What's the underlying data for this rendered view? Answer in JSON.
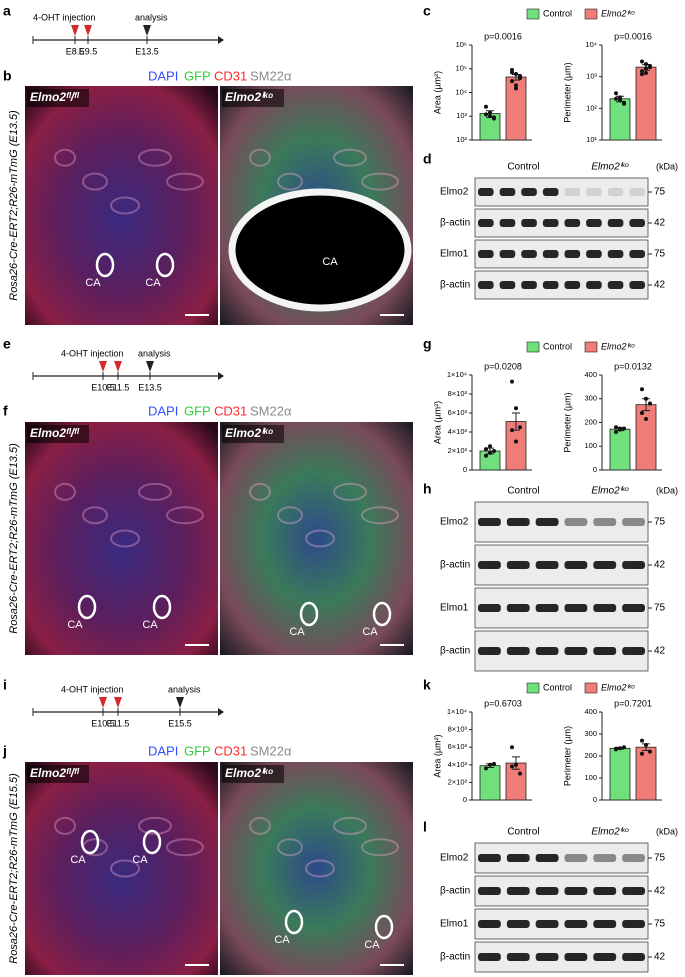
{
  "letters": [
    "a",
    "b",
    "c",
    "d",
    "e",
    "f",
    "g",
    "h",
    "i",
    "j",
    "k",
    "l"
  ],
  "timelines": [
    {
      "injection": "4-OHT injection",
      "analysis": "analysis",
      "stages": [
        "E8.5",
        "E9.5",
        "E13.5"
      ]
    },
    {
      "injection": "4-OHT injection",
      "analysis": "analysis",
      "stages": [
        "E10.5",
        "E11.5",
        "E13.5"
      ]
    },
    {
      "injection": "4-OHT injection",
      "analysis": "analysis",
      "stages": [
        "E10.5",
        "E11.5",
        "E15.5"
      ]
    }
  ],
  "images": [
    {
      "stains": [
        "DAPI",
        "GFP",
        "CD31",
        "SM22α"
      ],
      "side_label": "Rosa26-Cre-ERT2;R26-mTmG (E13.5)",
      "left_genotype": "Elmo2ᶠˡ/ᶠˡ",
      "right_genotype": "Elmo2ⁱᵏᵒ",
      "ca_labels": [
        "CA",
        "CA",
        "CA"
      ]
    },
    {
      "stains": [
        "DAPI",
        "GFP",
        "CD31",
        "SM22α"
      ],
      "side_label": "Rosa26-Cre-ERT2;R26-mTmG (E13.5)",
      "left_genotype": "Elmo2ᶠˡ/ᶠˡ",
      "right_genotype": "Elmo2ⁱᵏᵒ",
      "ca_labels": [
        "CA",
        "CA",
        "CA",
        "CA"
      ]
    },
    {
      "stains": [
        "DAPI",
        "GFP",
        "CD31",
        "SM22α"
      ],
      "side_label": "Rosa26-Cre-ERT2;R26-mTmG (E15.5)",
      "left_genotype": "Elmo2ᶠˡ/ᶠˡ",
      "right_genotype": "Elmo2ⁱᵏᵒ",
      "ca_labels": [
        "CA",
        "CA",
        "CA",
        "CA"
      ]
    }
  ],
  "blots": [
    {
      "groups": [
        "Control",
        "Elmo2ⁱᵏᵒ"
      ],
      "unit": "(kDa)",
      "rows": [
        {
          "protein": "Elmo2",
          "size": "75"
        },
        {
          "protein": "β-actin",
          "size": "42"
        },
        {
          "protein": "Elmo1",
          "size": "75"
        },
        {
          "protein": "β-actin",
          "size": "42"
        }
      ]
    },
    {
      "groups": [
        "Control",
        "Elmo2ⁱᵏᵒ"
      ],
      "unit": "(kDa)",
      "rows": [
        {
          "protein": "Elmo2",
          "size": "75"
        },
        {
          "protein": "β-actin",
          "size": "42"
        },
        {
          "protein": "Elmo1",
          "size": "75"
        },
        {
          "protein": "β-actin",
          "size": "42"
        }
      ]
    },
    {
      "groups": [
        "Control",
        "Elmo2ⁱᵏᵒ"
      ],
      "unit": "(kDa)",
      "rows": [
        {
          "protein": "Elmo2",
          "size": "75"
        },
        {
          "protein": "β-actin",
          "size": "42"
        },
        {
          "protein": "Elmo1",
          "size": "75"
        },
        {
          "protein": "β-actin",
          "size": "42"
        }
      ]
    }
  ],
  "chart_data": [
    {
      "type": "bar",
      "ylabel": "Area (µm²)",
      "annotation": "p=0.0016",
      "log": true,
      "ylim": [
        100,
        1000000
      ],
      "yticks": [
        {
          "value": 100,
          "label": "10²"
        },
        {
          "value": 1000,
          "label": "10³"
        },
        {
          "value": 10000,
          "label": "10⁴"
        },
        {
          "value": 100000,
          "label": "10⁵"
        },
        {
          "value": 1000000,
          "label": "10⁶"
        }
      ],
      "series": [
        {
          "name": "Control",
          "color": "#6fe07b",
          "values": [
            1300
          ],
          "errors": [
            400
          ],
          "points": [
            2500,
            1000,
            900,
            1200,
            1400,
            800
          ]
        },
        {
          "name": "Elmo2ⁱᵏᵒ",
          "color": "#f07c78",
          "values": [
            45000
          ],
          "errors": [
            12000
          ],
          "points": [
            90000,
            60000,
            40000,
            30000,
            20000,
            50000,
            70000,
            15000
          ]
        }
      ]
    },
    {
      "type": "bar",
      "ylabel": "Perimeter (µm)",
      "annotation": "p=0.0016",
      "log": true,
      "ylim": [
        10,
        10000
      ],
      "yticks": [
        {
          "value": 10,
          "label": "10¹"
        },
        {
          "value": 100,
          "label": "10²"
        },
        {
          "value": 1000,
          "label": "10³"
        },
        {
          "value": 10000,
          "label": "10⁴"
        }
      ],
      "series": [
        {
          "color": "#6fe07b",
          "values": [
            200
          ],
          "errors": [
            40
          ],
          "points": [
            300,
            180,
            150,
            200,
            220,
            140
          ]
        },
        {
          "color": "#f07c78",
          "values": [
            2000
          ],
          "errors": [
            400
          ],
          "points": [
            3000,
            2500,
            2000,
            1500,
            1800,
            2200,
            1200,
            1300
          ]
        }
      ]
    },
    {
      "type": "bar",
      "ylabel": "Area (µm²)",
      "annotation": "p=0.0208",
      "log": false,
      "ylim": [
        0,
        10000
      ],
      "yticks": [
        0,
        {
          "value": 2000,
          "label": "2×10³"
        },
        {
          "value": 4000,
          "label": "4×10³"
        },
        {
          "value": 6000,
          "label": "6×10³"
        },
        {
          "value": 8000,
          "label": "8×10³"
        },
        {
          "value": 10000,
          "label": "1×10⁴"
        }
      ],
      "series": [
        {
          "name": "Control",
          "color": "#6fe07b",
          "values": [
            2000
          ],
          "errors": [
            300
          ],
          "points": [
            1500,
            1800,
            2000,
            2200,
            2500
          ]
        },
        {
          "name": "Elmo2ⁱᵏᵒ",
          "color": "#f07c78",
          "values": [
            5100
          ],
          "errors": [
            900
          ],
          "points": [
            9300,
            6500,
            4500,
            4200,
            3000
          ]
        }
      ]
    },
    {
      "type": "bar",
      "ylabel": "Perimeter (µm)",
      "annotation": "p=0.0132",
      "log": false,
      "ylim": [
        0,
        400
      ],
      "yticks": [
        0,
        100,
        200,
        300,
        400
      ],
      "series": [
        {
          "color": "#6fe07b",
          "values": [
            172
          ],
          "errors": [
            6
          ],
          "points": [
            160,
            170,
            175,
            180,
            175
          ]
        },
        {
          "color": "#f07c78",
          "values": [
            275
          ],
          "errors": [
            25
          ],
          "points": [
            340,
            300,
            280,
            240,
            215
          ]
        }
      ]
    },
    {
      "type": "bar",
      "ylabel": "Area (µm²)",
      "annotation": "p=0.6703",
      "log": false,
      "ylim": [
        0,
        10000
      ],
      "yticks": [
        0,
        {
          "value": 2000,
          "label": "2×10³"
        },
        {
          "value": 4000,
          "label": "4×10³"
        },
        {
          "value": 6000,
          "label": "6×10³"
        },
        {
          "value": 8000,
          "label": "8×10³"
        },
        {
          "value": 10000,
          "label": "1×10⁴"
        }
      ],
      "series": [
        {
          "name": "Control",
          "color": "#6fe07b",
          "values": [
            3900
          ],
          "errors": [
            200
          ],
          "points": [
            3600,
            4000,
            4100
          ]
        },
        {
          "name": "Elmo2ⁱᵏᵒ",
          "color": "#f07c78",
          "values": [
            4200
          ],
          "errors": [
            700
          ],
          "points": [
            6000,
            4000,
            3000,
            3800
          ]
        }
      ]
    },
    {
      "type": "bar",
      "ylabel": "Perimeter (µm)",
      "annotation": "p=0.7201",
      "log": false,
      "ylim": [
        0,
        400
      ],
      "yticks": [
        0,
        100,
        200,
        300,
        400
      ],
      "series": [
        {
          "color": "#6fe07b",
          "values": [
            235
          ],
          "errors": [
            4
          ],
          "points": [
            230,
            235,
            240,
            233
          ]
        },
        {
          "color": "#f07c78",
          "values": [
            240
          ],
          "errors": [
            15
          ],
          "points": [
            270,
            250,
            220,
            210
          ]
        }
      ]
    }
  ]
}
